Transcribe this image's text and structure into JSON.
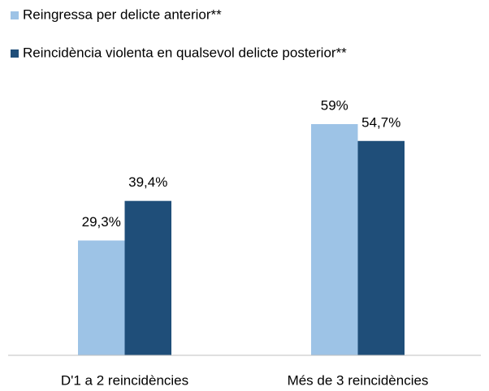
{
  "chart_data": {
    "type": "bar",
    "categories": [
      "D'1 a 2 reincidències",
      "Més de 3 reincidències"
    ],
    "series": [
      {
        "name": "Reingressa per delicte anterior**",
        "color": "#9dc3e6",
        "values": [
          29.3,
          59
        ],
        "value_labels": [
          "29,3%",
          "59%"
        ]
      },
      {
        "name": "Reincidència violenta en qualsevol delicte posterior**",
        "color": "#1f4e79",
        "values": [
          39.4,
          54.7
        ],
        "value_labels": [
          "39,4%",
          "54,7%"
        ]
      }
    ],
    "legend": "top-left"
  }
}
